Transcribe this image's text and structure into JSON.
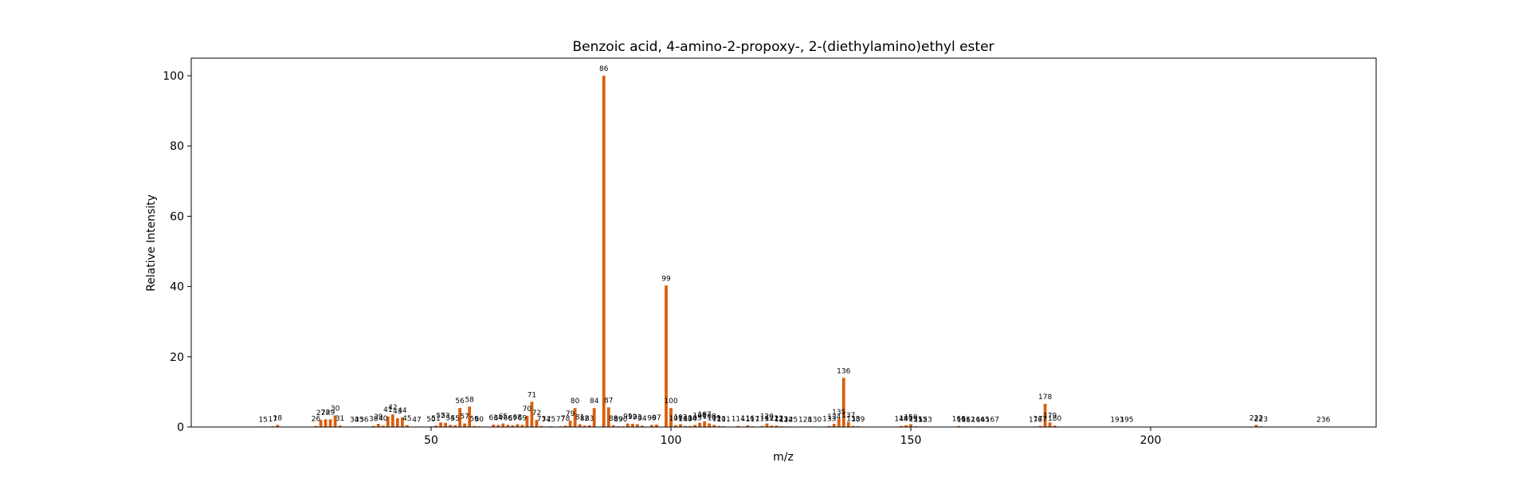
{
  "chart_data": {
    "type": "bar",
    "title": "Benzoic acid, 4-amino-2-propoxy-, 2-(diethylamino)ethyl ester",
    "xlabel": "m/z",
    "ylabel": "Relative Intensity",
    "xlim": [
      0,
      247
    ],
    "ylim": [
      0,
      105
    ],
    "xticks": [
      50,
      100,
      150,
      200
    ],
    "yticks": [
      0,
      20,
      40,
      60,
      80,
      100
    ],
    "grid": false,
    "bar_color": "#d95f0e",
    "peaks": [
      {
        "x": 15,
        "y": 0.1
      },
      {
        "x": 17,
        "y": 0.2
      },
      {
        "x": 18,
        "y": 0.6
      },
      {
        "x": 26,
        "y": 0.3
      },
      {
        "x": 27,
        "y": 2.0
      },
      {
        "x": 28,
        "y": 2.2
      },
      {
        "x": 29,
        "y": 2.2
      },
      {
        "x": 30,
        "y": 3.3
      },
      {
        "x": 31,
        "y": 0.4
      },
      {
        "x": 34,
        "y": 0.1
      },
      {
        "x": 35,
        "y": 0.1
      },
      {
        "x": 36,
        "y": 0.1
      },
      {
        "x": 38,
        "y": 0.3
      },
      {
        "x": 39,
        "y": 0.9
      },
      {
        "x": 40,
        "y": 0.4
      },
      {
        "x": 41,
        "y": 3.0
      },
      {
        "x": 42,
        "y": 3.6
      },
      {
        "x": 43,
        "y": 2.5
      },
      {
        "x": 44,
        "y": 2.7
      },
      {
        "x": 45,
        "y": 0.5
      },
      {
        "x": 47,
        "y": 0.1
      },
      {
        "x": 50,
        "y": 0.2
      },
      {
        "x": 51,
        "y": 0.4
      },
      {
        "x": 52,
        "y": 1.3
      },
      {
        "x": 53,
        "y": 1.2
      },
      {
        "x": 54,
        "y": 0.6
      },
      {
        "x": 55,
        "y": 0.5
      },
      {
        "x": 56,
        "y": 5.4
      },
      {
        "x": 57,
        "y": 1.0
      },
      {
        "x": 58,
        "y": 5.8
      },
      {
        "x": 59,
        "y": 0.3
      },
      {
        "x": 60,
        "y": 0.2
      },
      {
        "x": 63,
        "y": 0.7
      },
      {
        "x": 64,
        "y": 0.6
      },
      {
        "x": 65,
        "y": 1.0
      },
      {
        "x": 66,
        "y": 0.6
      },
      {
        "x": 67,
        "y": 0.5
      },
      {
        "x": 68,
        "y": 0.8
      },
      {
        "x": 69,
        "y": 0.6
      },
      {
        "x": 70,
        "y": 3.2
      },
      {
        "x": 71,
        "y": 7.2
      },
      {
        "x": 72,
        "y": 2.0
      },
      {
        "x": 73,
        "y": 0.3
      },
      {
        "x": 74,
        "y": 0.1
      },
      {
        "x": 75,
        "y": 0.2
      },
      {
        "x": 77,
        "y": 0.2
      },
      {
        "x": 78,
        "y": 0.4
      },
      {
        "x": 79,
        "y": 1.8
      },
      {
        "x": 80,
        "y": 5.4
      },
      {
        "x": 81,
        "y": 0.8
      },
      {
        "x": 82,
        "y": 0.4
      },
      {
        "x": 83,
        "y": 0.5
      },
      {
        "x": 84,
        "y": 5.4
      },
      {
        "x": 86,
        "y": 100
      },
      {
        "x": 87,
        "y": 5.6
      },
      {
        "x": 88,
        "y": 0.5
      },
      {
        "x": 89,
        "y": 0.2
      },
      {
        "x": 90,
        "y": 0.2
      },
      {
        "x": 91,
        "y": 1.0
      },
      {
        "x": 92,
        "y": 0.9
      },
      {
        "x": 93,
        "y": 0.8
      },
      {
        "x": 94,
        "y": 0.4
      },
      {
        "x": 96,
        "y": 0.6
      },
      {
        "x": 97,
        "y": 0.7
      },
      {
        "x": 99,
        "y": 40.3
      },
      {
        "x": 100,
        "y": 5.4
      },
      {
        "x": 101,
        "y": 0.5
      },
      {
        "x": 102,
        "y": 0.8
      },
      {
        "x": 103,
        "y": 0.3
      },
      {
        "x": 104,
        "y": 0.3
      },
      {
        "x": 105,
        "y": 0.6
      },
      {
        "x": 106,
        "y": 1.2
      },
      {
        "x": 107,
        "y": 1.6
      },
      {
        "x": 108,
        "y": 1.0
      },
      {
        "x": 109,
        "y": 0.6
      },
      {
        "x": 110,
        "y": 0.3
      },
      {
        "x": 111,
        "y": 0.2
      },
      {
        "x": 114,
        "y": 0.3
      },
      {
        "x": 116,
        "y": 0.5
      },
      {
        "x": 117,
        "y": 0.2
      },
      {
        "x": 119,
        "y": 0.3
      },
      {
        "x": 120,
        "y": 1.0
      },
      {
        "x": 121,
        "y": 0.4
      },
      {
        "x": 122,
        "y": 0.4
      },
      {
        "x": 123,
        "y": 0.2
      },
      {
        "x": 124,
        "y": 0.1
      },
      {
        "x": 125,
        "y": 0.1
      },
      {
        "x": 128,
        "y": 0.1
      },
      {
        "x": 130,
        "y": 0.1
      },
      {
        "x": 133,
        "y": 0.3
      },
      {
        "x": 134,
        "y": 0.9
      },
      {
        "x": 135,
        "y": 2.3
      },
      {
        "x": 136,
        "y": 14.0
      },
      {
        "x": 137,
        "y": 1.4
      },
      {
        "x": 138,
        "y": 0.3
      },
      {
        "x": 139,
        "y": 0.2
      },
      {
        "x": 148,
        "y": 0.3
      },
      {
        "x": 149,
        "y": 0.5
      },
      {
        "x": 150,
        "y": 0.8
      },
      {
        "x": 151,
        "y": 0.2
      },
      {
        "x": 152,
        "y": 0.1
      },
      {
        "x": 153,
        "y": 0.1
      },
      {
        "x": 160,
        "y": 0.3
      },
      {
        "x": 161,
        "y": 0.1
      },
      {
        "x": 162,
        "y": 0.1
      },
      {
        "x": 164,
        "y": 0.1
      },
      {
        "x": 165,
        "y": 0.1
      },
      {
        "x": 167,
        "y": 0.1
      },
      {
        "x": 176,
        "y": 0.1
      },
      {
        "x": 177,
        "y": 0.3
      },
      {
        "x": 178,
        "y": 6.6
      },
      {
        "x": 179,
        "y": 1.3
      },
      {
        "x": 180,
        "y": 0.4
      },
      {
        "x": 193,
        "y": 0.1
      },
      {
        "x": 195,
        "y": 0.1
      },
      {
        "x": 222,
        "y": 0.6
      },
      {
        "x": 223,
        "y": 0.2
      },
      {
        "x": 236,
        "y": 0.1
      }
    ]
  }
}
